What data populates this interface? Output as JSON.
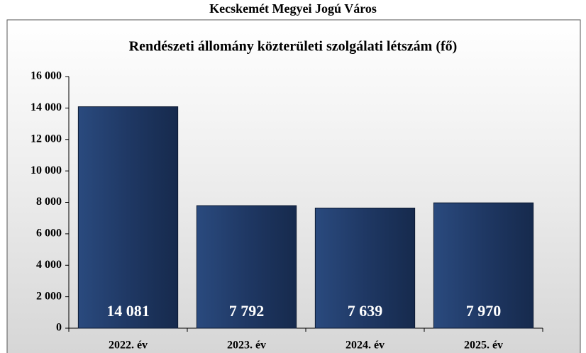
{
  "chart_data": {
    "type": "bar",
    "title": "Kecskemét Megyei Jogú Város",
    "subtitle": "Rendészeti állomány közterületi szolgálati létszám (fő)",
    "categories": [
      "2022. év",
      "2023. év",
      "2024. év",
      "2025. év"
    ],
    "values": [
      14081,
      7792,
      7639,
      7970
    ],
    "value_labels": [
      "14 081",
      "7 792",
      "7 639",
      "7 970"
    ],
    "color": "#1f3864",
    "ylim": [
      0,
      16000
    ],
    "yticks": [
      {
        "value": 0,
        "label": "0"
      },
      {
        "value": 2000,
        "label": "2 000"
      },
      {
        "value": 4000,
        "label": "4 000"
      },
      {
        "value": 6000,
        "label": "6 000"
      },
      {
        "value": 8000,
        "label": "8 000"
      },
      {
        "value": 10000,
        "label": "10 000"
      },
      {
        "value": 12000,
        "label": "12 000"
      },
      {
        "value": 14000,
        "label": "14 000"
      },
      {
        "value": 16000,
        "label": "16 000"
      }
    ],
    "grid": false
  }
}
